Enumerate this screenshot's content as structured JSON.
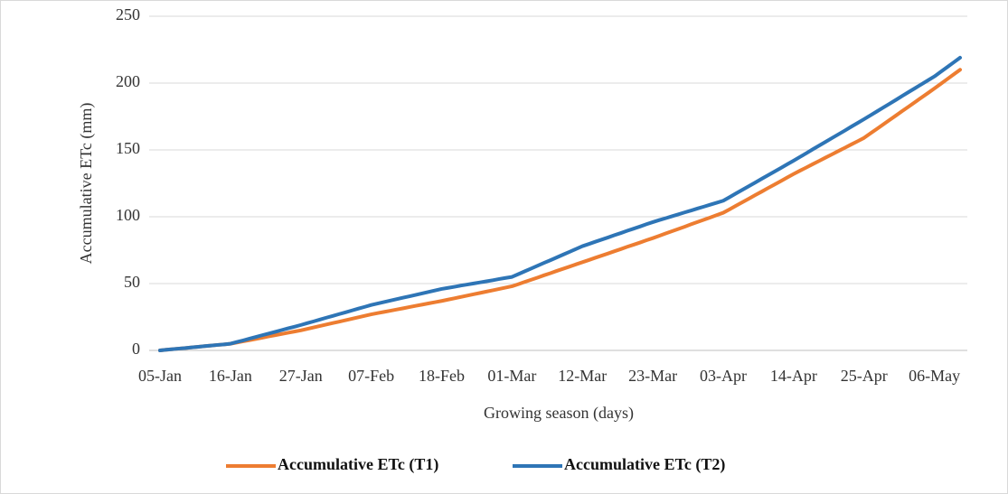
{
  "chart_data": {
    "type": "line",
    "xlabel": "Growing season (days)",
    "ylabel": "Accumulative ETc (mm)",
    "categories": [
      "05-Jan",
      null,
      null,
      null,
      null,
      null,
      null,
      null,
      null,
      null,
      null,
      "16-Jan",
      null,
      null,
      null,
      null,
      null,
      null,
      null,
      null,
      null,
      null,
      "27-Jan",
      null,
      null,
      null,
      null,
      null,
      null,
      null,
      null,
      null,
      null,
      "07-Feb",
      null,
      null,
      null,
      null,
      null,
      null,
      null,
      null,
      null,
      null,
      "18-Feb",
      null,
      null,
      null,
      null,
      null,
      null,
      null,
      null,
      null,
      null,
      "01-Mar",
      null,
      null,
      null,
      null,
      null,
      null,
      null,
      null,
      null,
      null,
      "12-Mar",
      null,
      null,
      null,
      null,
      null,
      null,
      null,
      null,
      null,
      null,
      "23-Mar",
      null,
      null,
      null,
      null,
      null,
      null,
      null,
      null,
      null,
      null,
      "03-Apr",
      null,
      null,
      null,
      null,
      null,
      null,
      null,
      null,
      null,
      null,
      "14-Apr",
      null,
      null,
      null,
      null,
      null,
      null,
      null,
      null,
      null,
      null,
      "25-Apr",
      null,
      null,
      null,
      null,
      null,
      null,
      null,
      null,
      null,
      null,
      "06-May",
      null,
      null,
      null,
      null
    ],
    "series": [
      {
        "name": "Accumulative ETc (T1)",
        "color": "#ed7d31",
        "values": [
          0,
          0.5,
          0.9,
          1.4,
          1.8,
          2.3,
          2.7,
          3.2,
          3.6,
          4.1,
          4.5,
          5,
          5.9,
          6.8,
          7.7,
          8.6,
          9.5,
          10.5,
          11.4,
          12.3,
          13.2,
          14.1,
          15,
          16.1,
          17.2,
          18.3,
          19.4,
          20.5,
          21.5,
          22.6,
          23.7,
          24.8,
          25.9,
          27,
          27.9,
          28.8,
          29.7,
          30.6,
          31.5,
          32.5,
          33.4,
          34.3,
          35.2,
          36.1,
          37,
          38,
          39,
          40,
          41,
          42,
          43,
          44,
          45,
          46,
          47,
          48,
          49.6,
          51.3,
          52.9,
          54.5,
          56.2,
          57.8,
          59.5,
          61.1,
          62.7,
          64.4,
          66,
          67.6,
          69.3,
          70.9,
          72.5,
          74.2,
          75.8,
          77.5,
          79.1,
          80.7,
          82.4,
          84,
          85.7,
          87.5,
          89.2,
          90.9,
          92.6,
          94.4,
          96.1,
          97.8,
          99.5,
          101.3,
          103,
          105.6,
          108.3,
          110.9,
          113.5,
          116.2,
          118.8,
          121.5,
          124.1,
          126.7,
          129.4,
          132,
          134.5,
          136.9,
          139.4,
          141.8,
          144.3,
          146.7,
          149.2,
          151.6,
          154.1,
          156.5,
          159,
          162.4,
          165.7,
          169.1,
          172.5,
          175.8,
          179.2,
          182.5,
          185.9,
          189.3,
          192.6,
          196,
          199.5,
          203,
          206.5,
          210
        ]
      },
      {
        "name": "Accumulative ETc (T2)",
        "color": "#2e75b6",
        "values": [
          0,
          0.5,
          0.9,
          1.4,
          1.8,
          2.3,
          2.7,
          3.2,
          3.6,
          4.1,
          4.5,
          5,
          6.3,
          7.5,
          8.8,
          10.1,
          11.4,
          12.6,
          13.9,
          15.2,
          16.5,
          17.7,
          19,
          20.4,
          21.7,
          23.1,
          24.5,
          25.8,
          27.2,
          28.5,
          29.9,
          31.3,
          32.6,
          34,
          35.1,
          36.2,
          37.3,
          38.4,
          39.5,
          40.5,
          41.6,
          42.7,
          43.8,
          44.9,
          46,
          46.8,
          47.6,
          48.5,
          49.3,
          50.1,
          50.9,
          51.7,
          52.5,
          53.4,
          54.2,
          55,
          57.1,
          59.2,
          61.3,
          63.4,
          65.5,
          67.5,
          69.6,
          71.7,
          73.8,
          75.9,
          78,
          79.6,
          81.3,
          82.9,
          84.5,
          86.2,
          87.8,
          89.5,
          91.1,
          92.7,
          94.4,
          96,
          97.5,
          98.9,
          100.4,
          101.8,
          103.3,
          104.7,
          106.2,
          107.6,
          109.1,
          110.5,
          112,
          114.7,
          117.5,
          120.2,
          122.9,
          125.6,
          128.4,
          131.1,
          133.8,
          136.5,
          139.3,
          142,
          144.8,
          147.6,
          150.5,
          153.3,
          156.1,
          158.9,
          161.7,
          164.5,
          167.4,
          170.2,
          173,
          175.9,
          178.8,
          181.7,
          184.6,
          187.5,
          190.5,
          193.4,
          196.3,
          199.2,
          202.1,
          205,
          208.5,
          212,
          215.5,
          219
        ]
      }
    ],
    "ylim": [
      0,
      250
    ],
    "yticks": [
      0,
      50,
      100,
      150,
      200,
      250
    ],
    "grid": true,
    "legend": "bottom"
  }
}
